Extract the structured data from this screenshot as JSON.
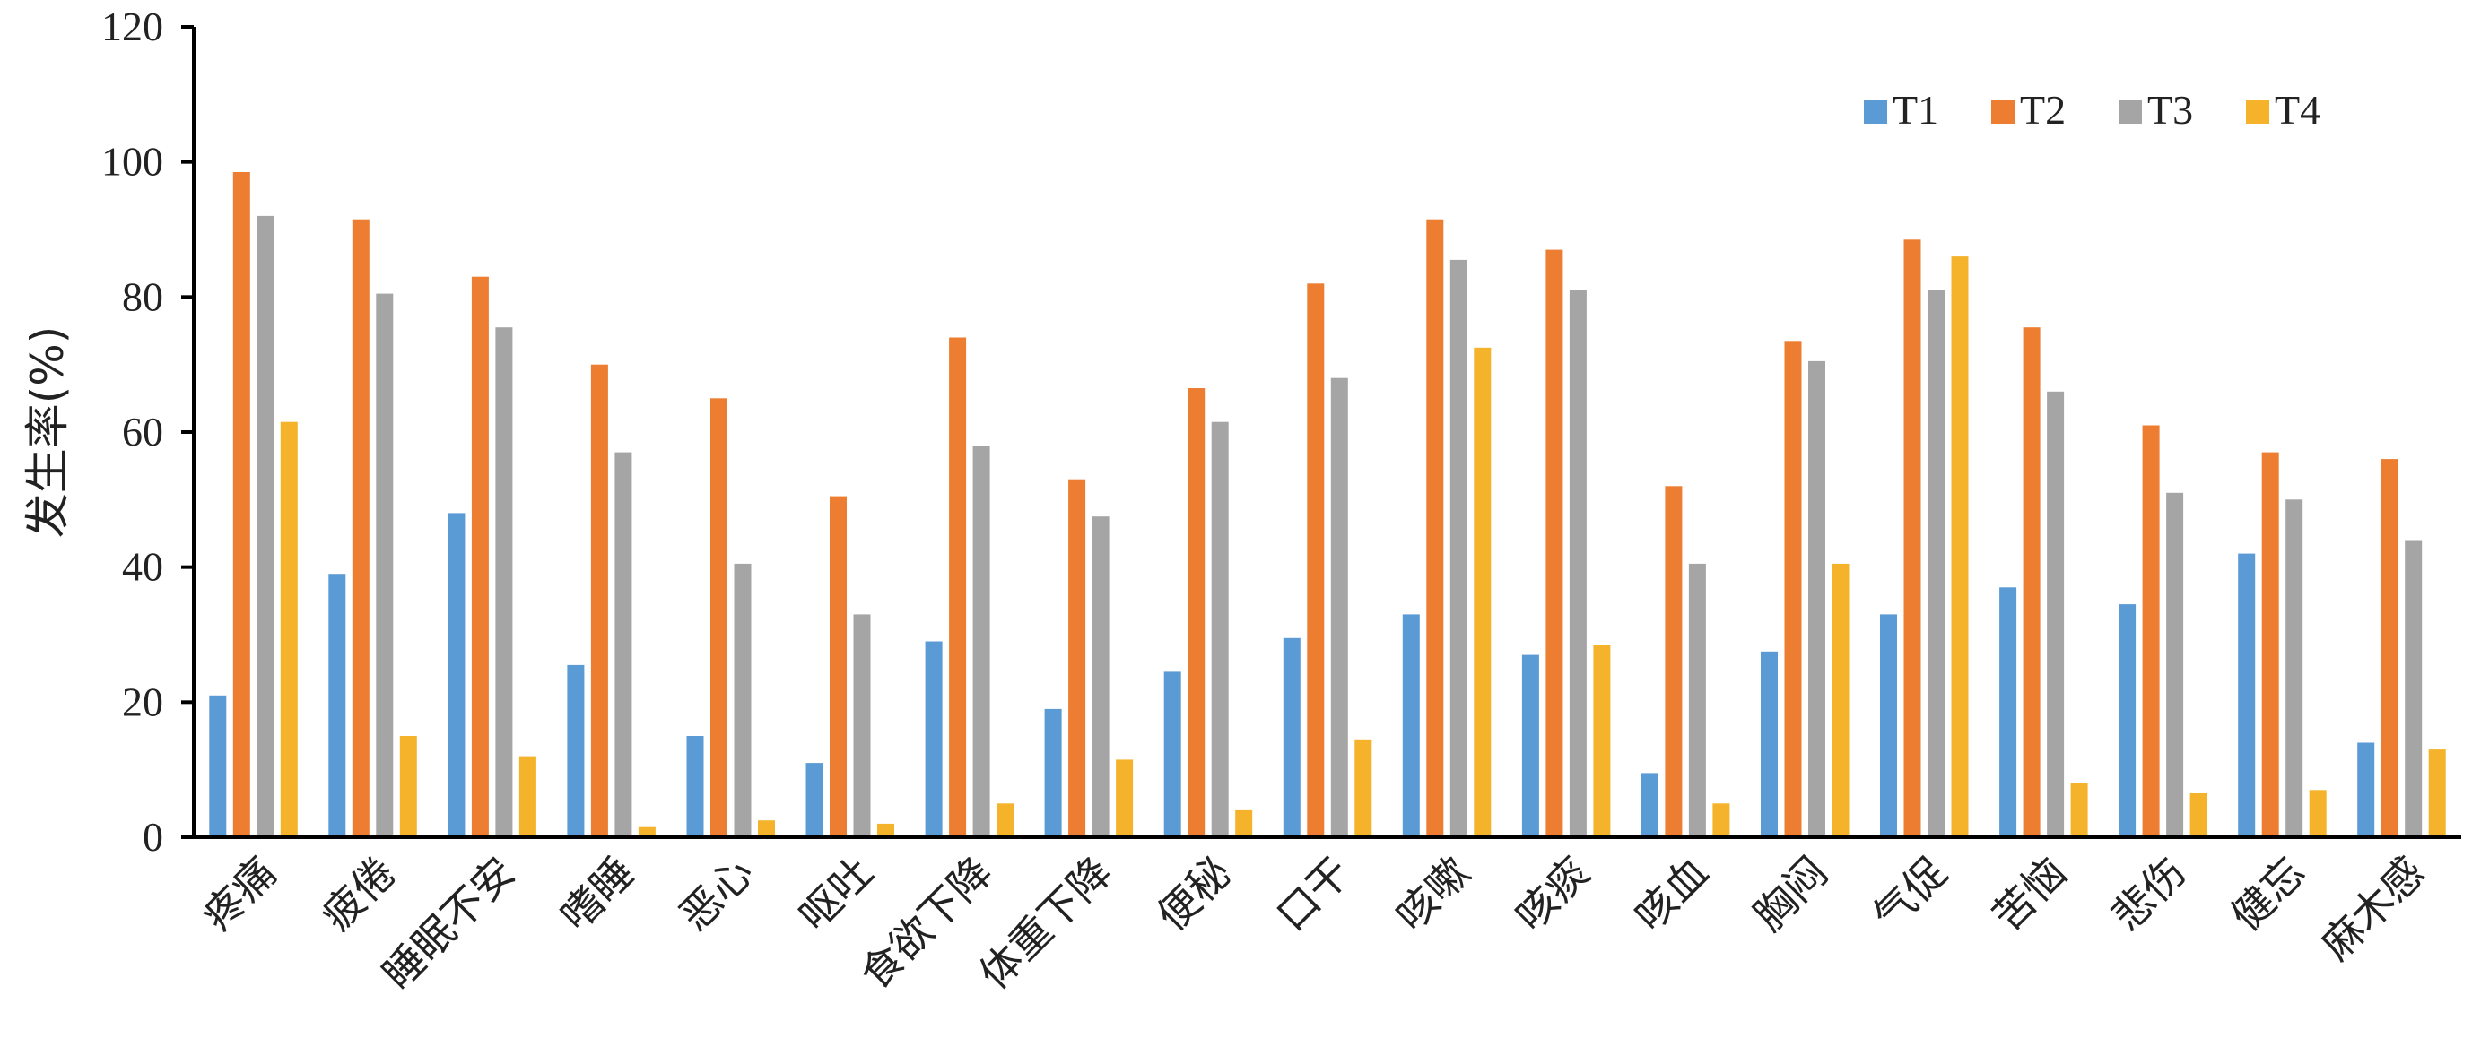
{
  "chart_data": {
    "type": "bar",
    "title": "",
    "xlabel": "",
    "ylabel": "发生率(%)",
    "ylim": [
      0,
      120
    ],
    "yticks": [
      0,
      20,
      40,
      60,
      80,
      100,
      120
    ],
    "grid": false,
    "legend_position": "top-right",
    "categories": [
      "疼痛",
      "疲倦",
      "睡眠不安",
      "嗜睡",
      "恶心",
      "呕吐",
      "食欲下降",
      "体重下降",
      "便秘",
      "口干",
      "咳嗽",
      "咳痰",
      "咳血",
      "胸闷",
      "气促",
      "苦恼",
      "悲伤",
      "健忘",
      "麻木感"
    ],
    "series": [
      {
        "name": "T1",
        "color": "#5B9BD5",
        "values": [
          21,
          39,
          48,
          25.5,
          15,
          11,
          29,
          19,
          24.5,
          29.5,
          33,
          27,
          9.5,
          27.5,
          33,
          37,
          34.5,
          42,
          14
        ]
      },
      {
        "name": "T2",
        "color": "#ED7D31",
        "values": [
          98.5,
          91.5,
          83,
          70,
          65,
          50.5,
          74,
          53,
          66.5,
          82,
          91.5,
          87,
          52,
          73.5,
          88.5,
          75.5,
          61,
          57,
          56
        ]
      },
      {
        "name": "T3",
        "color": "#A5A5A5",
        "values": [
          92,
          80.5,
          75.5,
          57,
          40.5,
          33,
          58,
          47.5,
          61.5,
          68,
          85.5,
          81,
          40.5,
          70.5,
          81,
          66,
          51,
          50,
          44
        ]
      },
      {
        "name": "T4",
        "color": "#F4B32A",
        "values": [
          61.5,
          15,
          12,
          1.5,
          2.5,
          2,
          5,
          11.5,
          4,
          14.5,
          72.5,
          28.5,
          5,
          40.5,
          86,
          8,
          6.5,
          7,
          13
        ]
      }
    ]
  }
}
